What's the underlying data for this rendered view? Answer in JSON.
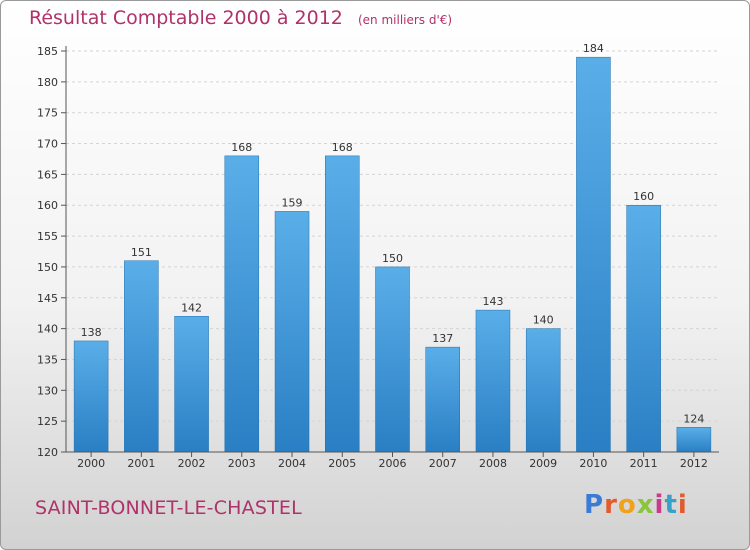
{
  "title": "Résultat Comptable 2000 à 2012",
  "unit_note": "(en milliers d'€)",
  "commune": "SAINT-BONNET-LE-CHASTEL",
  "logo": {
    "text": "Proxiti",
    "letters": [
      "P",
      "r",
      "o",
      "x",
      "i",
      "t",
      "i"
    ],
    "colors": [
      "#3a7bd5",
      "#e35a2b",
      "#f0a21a",
      "#8ac53f",
      "#c93a8b",
      "#3aa0c9",
      "#e35a2b"
    ]
  },
  "colors": {
    "bar_top": "#5aaee8",
    "bar_bottom": "#2a7fc4",
    "accent": "#b0326a"
  },
  "chart_data": {
    "type": "bar",
    "categories": [
      "2000",
      "2001",
      "2002",
      "2003",
      "2004",
      "2005",
      "2006",
      "2007",
      "2008",
      "2009",
      "2010",
      "2011",
      "2012"
    ],
    "values": [
      138,
      151,
      142,
      168,
      159,
      168,
      150,
      137,
      143,
      140,
      184,
      160,
      124
    ],
    "ylim": [
      120,
      185
    ],
    "yticks": [
      120,
      125,
      130,
      135,
      140,
      145,
      150,
      155,
      160,
      165,
      170,
      175,
      180,
      185
    ],
    "grid": true
  }
}
